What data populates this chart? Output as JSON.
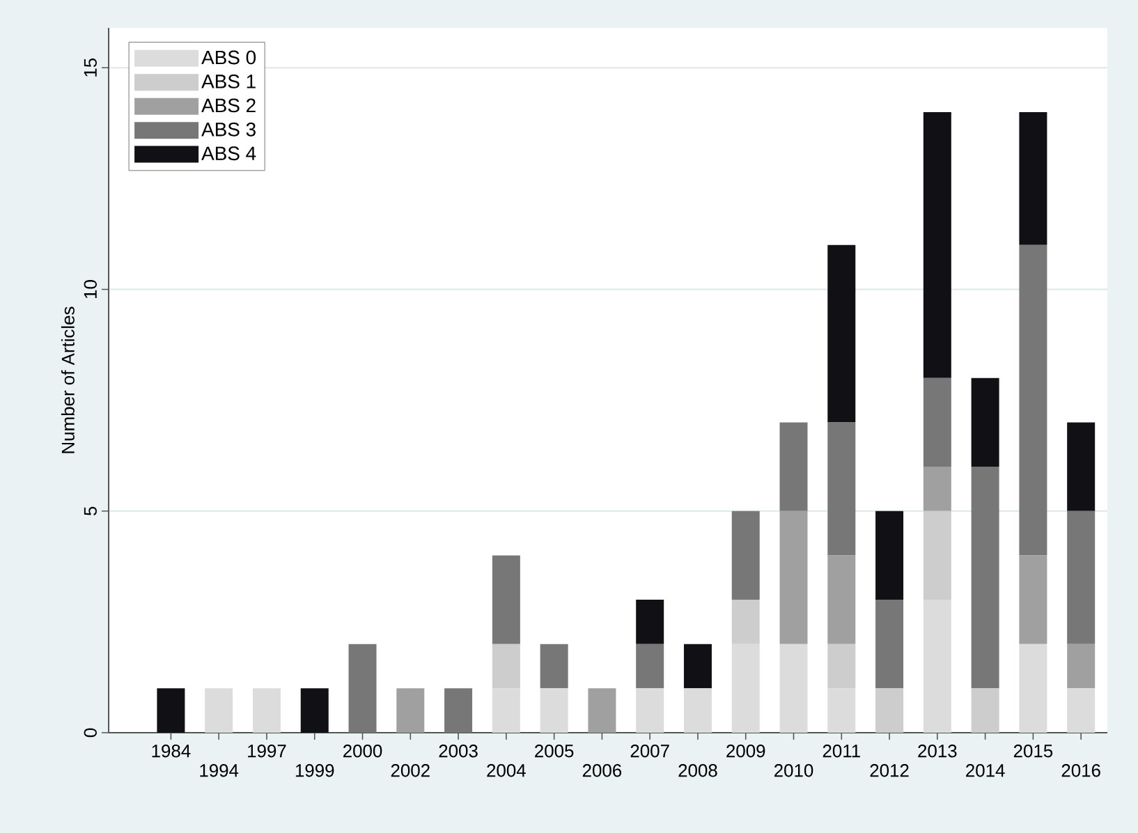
{
  "chart_data": {
    "type": "bar",
    "stacked": true,
    "ylabel": "Number of Articles",
    "categories": [
      "1984",
      "1994",
      "1997",
      "1999",
      "2000",
      "2002",
      "2003",
      "2004",
      "2005",
      "2006",
      "2007",
      "2008",
      "2009",
      "2010",
      "2011",
      "2012",
      "2013",
      "2014",
      "2015",
      "2016"
    ],
    "series": [
      {
        "name": "ABS 0",
        "color": "#dcdcdc",
        "values": [
          0,
          1,
          1,
          0,
          0,
          0,
          0,
          1,
          1,
          0,
          1,
          1,
          2,
          2,
          1,
          0,
          3,
          0,
          2,
          1
        ]
      },
      {
        "name": "ABS 1",
        "color": "#cdcdcd",
        "values": [
          0,
          0,
          0,
          0,
          0,
          0,
          0,
          1,
          0,
          0,
          0,
          0,
          1,
          0,
          1,
          1,
          2,
          1,
          0,
          0
        ]
      },
      {
        "name": "ABS 2",
        "color": "#a0a0a0",
        "values": [
          0,
          0,
          0,
          0,
          0,
          1,
          0,
          0,
          0,
          1,
          0,
          0,
          0,
          3,
          2,
          0,
          1,
          0,
          2,
          1
        ]
      },
      {
        "name": "ABS 3",
        "color": "#777777",
        "values": [
          0,
          0,
          0,
          0,
          2,
          0,
          1,
          2,
          1,
          0,
          1,
          0,
          2,
          2,
          3,
          2,
          2,
          5,
          7,
          3
        ]
      },
      {
        "name": "ABS 4",
        "color": "#111115",
        "values": [
          1,
          0,
          0,
          1,
          0,
          0,
          0,
          0,
          0,
          0,
          1,
          1,
          0,
          0,
          4,
          2,
          6,
          2,
          3,
          2
        ]
      }
    ],
    "ylim": [
      0,
      15.9
    ],
    "yticks": [
      0,
      5,
      10,
      15
    ],
    "grid": "y",
    "legend": "top left"
  }
}
